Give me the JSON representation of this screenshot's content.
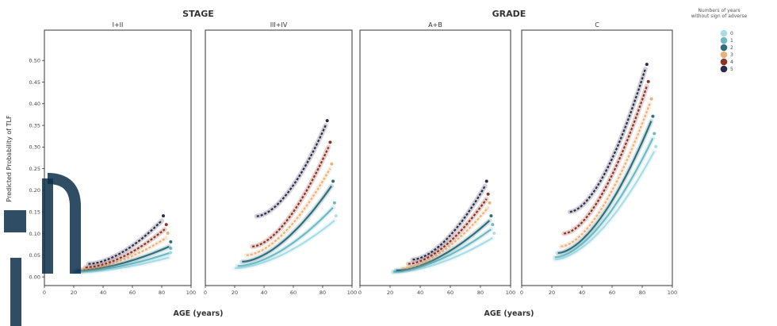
{
  "group_titles": [
    "STAGE",
    "GRADE"
  ],
  "xlabel": "AGE (years)",
  "ylabel": "Predicted Probability of TLF",
  "legend": {
    "title": [
      "Numbers of years",
      "without sign of adverse"
    ],
    "items": [
      {
        "label": "0",
        "color": "#a9dde6"
      },
      {
        "label": "1",
        "color": "#6fb9c3"
      },
      {
        "label": "2",
        "color": "#2e6f7d"
      },
      {
        "label": "3",
        "color": "#e7b27c"
      },
      {
        "label": "4",
        "color": "#8a3326"
      },
      {
        "label": "5",
        "color": "#2c2a4a"
      }
    ]
  },
  "chart_data": [
    {
      "type": "line",
      "title": "I+II",
      "xlim": [
        0,
        100
      ],
      "ylim": [
        -0.02,
        0.57
      ],
      "xticks": [
        0,
        20,
        40,
        60,
        80,
        100
      ],
      "yticks": [
        0.0,
        0.05,
        0.1,
        0.15,
        0.2,
        0.25,
        0.3,
        0.35,
        0.4,
        0.45,
        0.5
      ],
      "ytick_labels": [
        "0.00",
        "0.05",
        "0.10",
        "0.15",
        "0.20",
        "0.25",
        "0.30",
        "0.35",
        "0.40",
        "0.45",
        "0.50"
      ],
      "series": [
        {
          "name": "0",
          "x_start": 20,
          "x_end": 85,
          "y_start": 0.01,
          "y_end": 0.045
        },
        {
          "name": "1",
          "x_start": 20,
          "x_end": 85,
          "y_start": 0.012,
          "y_end": 0.055
        },
        {
          "name": "2",
          "x_start": 22,
          "x_end": 85,
          "y_start": 0.015,
          "y_end": 0.07
        },
        {
          "name": "3",
          "x_start": 25,
          "x_end": 83,
          "y_start": 0.018,
          "y_end": 0.09
        },
        {
          "name": "4",
          "x_start": 28,
          "x_end": 82,
          "y_start": 0.022,
          "y_end": 0.11
        },
        {
          "name": "5",
          "x_start": 30,
          "x_end": 80,
          "y_start": 0.03,
          "y_end": 0.13
        }
      ]
    },
    {
      "type": "line",
      "title": "III+IV",
      "xlim": [
        0,
        100
      ],
      "ylim": [
        -0.02,
        0.57
      ],
      "xticks": [
        0,
        20,
        40,
        60,
        80,
        100
      ],
      "yticks": [],
      "ytick_labels": [],
      "series": [
        {
          "name": "0",
          "x_start": 20,
          "x_end": 88,
          "y_start": 0.02,
          "y_end": 0.13
        },
        {
          "name": "1",
          "x_start": 22,
          "x_end": 87,
          "y_start": 0.025,
          "y_end": 0.16
        },
        {
          "name": "2",
          "x_start": 25,
          "x_end": 86,
          "y_start": 0.035,
          "y_end": 0.21
        },
        {
          "name": "3",
          "x_start": 28,
          "x_end": 85,
          "y_start": 0.05,
          "y_end": 0.25
        },
        {
          "name": "4",
          "x_start": 32,
          "x_end": 84,
          "y_start": 0.07,
          "y_end": 0.3
        },
        {
          "name": "5",
          "x_start": 35,
          "x_end": 82,
          "y_start": 0.14,
          "y_end": 0.35
        }
      ]
    },
    {
      "type": "line",
      "title": "A+B",
      "xlim": [
        0,
        100
      ],
      "ylim": [
        -0.02,
        0.57
      ],
      "xticks": [
        0,
        20,
        40,
        60,
        80,
        100
      ],
      "yticks": [],
      "ytick_labels": [],
      "series": [
        {
          "name": "0",
          "x_start": 22,
          "x_end": 88,
          "y_start": 0.01,
          "y_end": 0.09
        },
        {
          "name": "1",
          "x_start": 22,
          "x_end": 87,
          "y_start": 0.012,
          "y_end": 0.11
        },
        {
          "name": "2",
          "x_start": 24,
          "x_end": 86,
          "y_start": 0.015,
          "y_end": 0.13
        },
        {
          "name": "3",
          "x_start": 28,
          "x_end": 85,
          "y_start": 0.02,
          "y_end": 0.16
        },
        {
          "name": "4",
          "x_start": 32,
          "x_end": 84,
          "y_start": 0.03,
          "y_end": 0.18
        },
        {
          "name": "5",
          "x_start": 35,
          "x_end": 83,
          "y_start": 0.04,
          "y_end": 0.21
        }
      ]
    },
    {
      "type": "line",
      "title": "C",
      "xlim": [
        0,
        100
      ],
      "ylim": [
        -0.02,
        0.57
      ],
      "xticks": [
        0,
        20,
        40,
        60,
        80,
        100
      ],
      "yticks": [],
      "ytick_labels": [],
      "series": [
        {
          "name": "0",
          "x_start": 22,
          "x_end": 88,
          "y_start": 0.04,
          "y_end": 0.29
        },
        {
          "name": "1",
          "x_start": 22,
          "x_end": 87,
          "y_start": 0.045,
          "y_end": 0.32
        },
        {
          "name": "2",
          "x_start": 24,
          "x_end": 86,
          "y_start": 0.055,
          "y_end": 0.36
        },
        {
          "name": "3",
          "x_start": 26,
          "x_end": 85,
          "y_start": 0.07,
          "y_end": 0.4
        },
        {
          "name": "4",
          "x_start": 28,
          "x_end": 83,
          "y_start": 0.1,
          "y_end": 0.44
        },
        {
          "name": "5",
          "x_start": 32,
          "x_end": 82,
          "y_start": 0.15,
          "y_end": 0.48
        }
      ]
    }
  ]
}
